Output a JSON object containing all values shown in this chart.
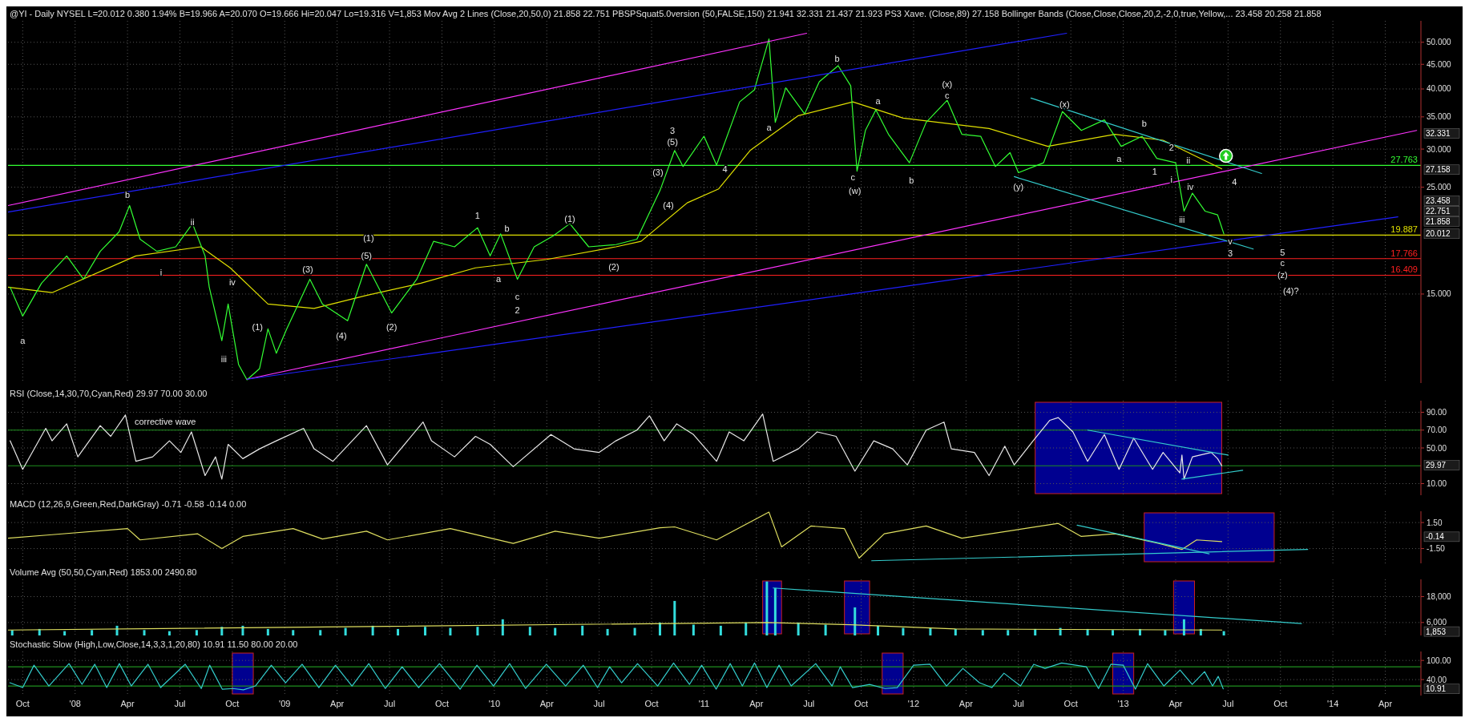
{
  "chart_data": [
    {
      "type": "line",
      "title": "@YI - Daily NYSEL L=20.012 0.380 1.94% B=19.966 A=20.070 O=19.666 Hi=20.047 Lo=19.316 V=1,853 Mov Avg 2 Lines (Close,20,50,0) 21.858 22.751 PBSPSquat5.0version (50,FALSE,150) 21.941 32.331 21.437 21.923 PS3 Xave. (Close,89) 27.158 Bollinger Bands (Close,Close,Close,20,2,-2,0,true,Yellow,... 23.458 20.258 21.858",
      "log": true,
      "grid": true,
      "tick_labels": "y",
      "xlim": [
        2007.68,
        2014.42
      ],
      "xticks": [
        2007.75,
        2008,
        2008.25,
        2008.5,
        2008.75,
        2009,
        2009.25,
        2009.5,
        2009.75,
        2010,
        2010.25,
        2010.5,
        2010.75,
        2011,
        2011.25,
        2011.5,
        2011.75,
        2012,
        2012.25,
        2012.5,
        2012.75,
        2013,
        2013.25,
        2013.5,
        2013.75,
        2014,
        2014.25
      ],
      "ylim": [
        9.8,
        55.4
      ],
      "yticks": [
        {
          "value": 15,
          "label": "15.000"
        },
        {
          "value": 25,
          "label": "25.000"
        },
        {
          "value": 30,
          "label": "30.000"
        },
        {
          "value": 35,
          "label": "35.000"
        },
        {
          "value": 40,
          "label": "40.000"
        },
        {
          "value": 45,
          "label": "45.000"
        },
        {
          "value": 50,
          "label": "50.000"
        }
      ],
      "series": [
        {
          "color": "#e0e000",
          "x": [
            2007.68,
            2007.89,
            2008.29,
            2008.6,
            2008.74,
            2008.92,
            2009.14,
            2009.39,
            2009.65,
            2009.91,
            2010.25,
            2010.58,
            2010.7,
            2010.92,
            2011.07,
            2011.22,
            2011.45,
            2011.71,
            2011.95,
            2012.36,
            2012.64,
            2012.96,
            2013.19,
            2013.47
          ],
          "values": [
            15.5,
            15.1,
            18.0,
            18.8,
            17.0,
            14.3,
            14.0,
            14.9,
            15.8,
            17.0,
            17.7,
            18.8,
            19.3,
            23.2,
            24.8,
            29.8,
            35.2,
            37.6,
            34.8,
            33.1,
            30.4,
            32.2,
            31.3,
            27.3
          ]
        },
        {
          "color": "#33ff33",
          "x": [
            2007.69,
            2007.75,
            2007.84,
            2007.96,
            2008.04,
            2008.12,
            2008.21,
            2008.26,
            2008.31,
            2008.39,
            2008.48,
            2008.56,
            2008.62,
            2008.64,
            2008.7,
            2008.73,
            2008.78,
            2008.82,
            2008.88,
            2008.92,
            2008.96,
            2009.01,
            2009.12,
            2009.18,
            2009.3,
            2009.39,
            2009.51,
            2009.63,
            2009.71,
            2009.81,
            2009.92,
            2009.98,
            2010.03,
            2010.11,
            2010.19,
            2010.28,
            2010.36,
            2010.45,
            2010.58,
            2010.68,
            2010.79,
            2010.86,
            2010.9,
            2011.0,
            2011.06,
            2011.17,
            2011.24,
            2011.31,
            2011.34,
            2011.39,
            2011.48,
            2011.55,
            2011.64,
            2011.7,
            2011.73,
            2011.77,
            2011.82,
            2011.88,
            2011.98,
            2012.06,
            2012.16,
            2012.23,
            2012.32,
            2012.39,
            2012.46,
            2012.5,
            2012.62,
            2012.71,
            2012.8,
            2012.91,
            2012.99,
            2013.09,
            2013.16,
            2013.25,
            2013.29,
            2013.33,
            2013.39,
            2013.45,
            2013.48
          ],
          "values": [
            15.5,
            13.5,
            15.8,
            18.0,
            16.1,
            18.4,
            20.2,
            22.9,
            19.5,
            18.4,
            18.8,
            21.0,
            18.0,
            15.5,
            12.0,
            14.3,
            10.7,
            9.95,
            10.5,
            12.7,
            11.3,
            12.7,
            16.1,
            14.3,
            13.2,
            17.3,
            13.7,
            16.1,
            19.3,
            18.8,
            20.6,
            18.0,
            20.0,
            16.1,
            18.8,
            19.8,
            21.0,
            18.8,
            19.0,
            19.5,
            24.6,
            29.8,
            27.6,
            31.9,
            27.8,
            37.6,
            39.8,
            50.8,
            34.1,
            40.2,
            35.5,
            41.4,
            44.7,
            40.6,
            27.0,
            32.8,
            36.2,
            32.2,
            28.1,
            34.1,
            37.9,
            32.2,
            31.9,
            27.6,
            29.5,
            26.8,
            28.1,
            35.9,
            32.8,
            34.5,
            30.4,
            31.9,
            28.7,
            28.1,
            22.3,
            24.3,
            22.3,
            21.9,
            20.0
          ]
        },
        {
          "color": "#ff33ff",
          "x": [
            2007.68,
            2011.49
          ],
          "values": [
            22.9,
            52.2
          ]
        },
        {
          "color": "#2020ff",
          "x": [
            2007.68,
            2012.73
          ],
          "values": [
            22.2,
            52.2
          ]
        },
        {
          "color": "#ff33ff",
          "x": [
            2008.82,
            2014.4
          ],
          "values": [
            9.98,
            32.8
          ]
        },
        {
          "color": "#2020ff",
          "x": [
            2008.82,
            2014.31
          ],
          "values": [
            9.98,
            21.7
          ]
        },
        {
          "color": "#33cccc",
          "x": [
            2012.56,
            2013.66
          ],
          "values": [
            38.3,
            26.7
          ]
        },
        {
          "color": "#33cccc",
          "x": [
            2012.48,
            2013.62
          ],
          "values": [
            26.3,
            18.6
          ]
        }
      ],
      "ref_lines": [
        {
          "axis": "y",
          "value": 27.763,
          "label": "27.763",
          "color": "#33ff33"
        },
        {
          "axis": "y",
          "value": 19.887,
          "label": "19.887",
          "color": "#e0e000"
        },
        {
          "axis": "y",
          "value": 17.766,
          "label": "17.766",
          "color": "#ff2020"
        },
        {
          "axis": "y",
          "value": 16.409,
          "label": "16.409",
          "color": "#ff2020"
        }
      ],
      "annotations": [
        "a",
        "b",
        "i",
        "ii",
        "iv",
        "iii",
        "(1)",
        "(3)",
        "(4)",
        "(5)",
        "(1)",
        "(2)",
        "1",
        "b",
        "a",
        "c",
        "2",
        "(1)",
        "(2)",
        "(3)",
        "(4)",
        "(5)",
        "3",
        "4",
        "a",
        "b",
        "c",
        "(w)",
        "a",
        "b",
        "c",
        "(x)",
        "(y)",
        "(x)",
        "a",
        "b",
        "1",
        "2",
        "i",
        "ii",
        "iv",
        "iii",
        "v",
        "3",
        "4",
        "5",
        "c",
        "(z)",
        "(4)?",
        "32.331",
        "27.158",
        "23.458",
        "22.751",
        "21.858",
        "20.012"
      ]
    },
    {
      "type": "line",
      "title": "RSI (Close,14,30,70,Cyan,Red) 29.97 70.00 30.00",
      "grid": true,
      "tick_labels": "y",
      "xlim": [
        2007.68,
        2014.42
      ],
      "xticks": [
        2007.75,
        2008,
        2008.25,
        2008.5,
        2008.75,
        2009,
        2009.25,
        2009.5,
        2009.75,
        2010,
        2010.25,
        2010.5,
        2010.75,
        2011,
        2011.25,
        2011.5,
        2011.75,
        2012,
        2012.25,
        2012.5,
        2012.75,
        2013,
        2013.25,
        2013.5,
        2013.75,
        2014,
        2014.25
      ],
      "ylim": [
        -3,
        103
      ],
      "yticks": [
        {
          "value": 10,
          "label": "10.00"
        },
        {
          "value": 50,
          "label": "50.00"
        },
        {
          "value": 70,
          "label": "70.00"
        },
        {
          "value": 90,
          "label": "90.00"
        }
      ],
      "bands": [
        {
          "axis": "x",
          "from": 2012.58,
          "to": 2013.47,
          "color": "#000090"
        }
      ],
      "ref_lines": [
        {
          "axis": "y",
          "value": 70,
          "color": "#1f8f1f"
        },
        {
          "axis": "y",
          "value": 30,
          "color": "#1f8f1f"
        }
      ],
      "series": [
        {
          "color": "#e8e8e8",
          "x": [
            2007.69,
            2007.75,
            2007.86,
            2007.89,
            2007.96,
            2008.013,
            2008.12,
            2008.17,
            2008.24,
            2008.29,
            2008.37,
            2008.45,
            2008.505,
            2008.555,
            2008.62,
            2008.67,
            2008.7,
            2008.73,
            2008.8,
            2008.88,
            2008.96,
            2009.09,
            2009.14,
            2009.23,
            2009.39,
            2009.49,
            2009.66,
            2009.7,
            2009.81,
            2009.91,
            2009.98,
            2010.09,
            2010.27,
            2010.38,
            2010.5,
            2010.58,
            2010.68,
            2010.74,
            2010.81,
            2010.87,
            2010.95,
            2011.06,
            2011.12,
            2011.19,
            2011.28,
            2011.33,
            2011.45,
            2011.54,
            2011.63,
            2011.72,
            2011.81,
            2011.9,
            2011.97,
            2012.06,
            2012.145,
            2012.18,
            2012.29,
            2012.36,
            2012.435,
            2012.48,
            2012.57,
            2012.65,
            2012.69,
            2012.76,
            2012.83,
            2012.91,
            2012.98,
            2013.05,
            2013.14,
            2013.19,
            2013.27,
            2013.28,
            2013.29,
            2013.33,
            2013.42,
            2013.45,
            2013.47
          ],
          "values": [
            58,
            26,
            72,
            58,
            77,
            40,
            75,
            63,
            87,
            35,
            40,
            58,
            45,
            68,
            19,
            40,
            15,
            54,
            38,
            49,
            58,
            72,
            49,
            35,
            75,
            31,
            79,
            58,
            40,
            63,
            54,
            29,
            65,
            49,
            45,
            58,
            70,
            86,
            58,
            77,
            65,
            35,
            68,
            58,
            88,
            35,
            49,
            68,
            63,
            24,
            58,
            49,
            31,
            70,
            79,
            49,
            45,
            19,
            52,
            31,
            58,
            81,
            84,
            68,
            35,
            65,
            26,
            61,
            26,
            45,
            22,
            42,
            15,
            40,
            45,
            38,
            30
          ]
        },
        {
          "color": "#33cccc",
          "x": [
            2012.83,
            2013.5
          ],
          "values": [
            70,
            42
          ]
        },
        {
          "color": "#33cccc",
          "x": [
            2013.28,
            2013.57
          ],
          "values": [
            15,
            25
          ]
        }
      ],
      "annotations": [
        "corrective wave",
        "29.97"
      ]
    },
    {
      "type": "line",
      "title": "MACD (12,26,9,Green,Red,DarkGray) -0.71 -0.58 -0.14 0.00",
      "grid": true,
      "tick_labels": "y",
      "xlim": [
        2007.68,
        2014.42
      ],
      "xticks": [
        2007.75,
        2008,
        2008.25,
        2008.5,
        2008.75,
        2009,
        2009.25,
        2009.5,
        2009.75,
        2010,
        2010.25,
        2010.5,
        2010.75,
        2011,
        2011.25,
        2011.5,
        2011.75,
        2012,
        2012.25,
        2012.5,
        2012.75,
        2013,
        2013.25,
        2013.5,
        2013.75,
        2014,
        2014.25
      ],
      "ylim": [
        -3.2,
        2.8
      ],
      "yticks": [
        {
          "value": 1.5,
          "label": "1.50"
        },
        {
          "value": -1.5,
          "label": "-1.50"
        }
      ],
      "bands": [
        {
          "axis": "x",
          "from": 2013.1,
          "to": 2013.72,
          "color": "#000090"
        }
      ],
      "series": [
        {
          "color": "#e0e060",
          "x": [
            2007.68,
            2007.89,
            2008.25,
            2008.31,
            2008.585,
            2008.7,
            2008.8,
            2009.04,
            2009.18,
            2009.39,
            2009.49,
            2009.79,
            2010.09,
            2010.29,
            2010.5,
            2010.79,
            2010.86,
            2011.06,
            2011.31,
            2011.37,
            2011.51,
            2011.67,
            2011.74,
            2011.86,
            2012.06,
            2012.23,
            2012.69,
            2012.8,
            2012.96,
            2013.17,
            2013.28,
            2013.35,
            2013.47
          ],
          "values": [
            -0.3,
            0.1,
            0.8,
            -0.5,
            0.2,
            -1.5,
            -0.1,
            0.8,
            -0.4,
            0.5,
            -0.5,
            0.8,
            -0.9,
            0.5,
            -0.3,
            0.9,
            1.0,
            -0.5,
            2.7,
            -1.3,
            1.1,
            0.8,
            -2.6,
            0.2,
            1.1,
            -0.3,
            1.4,
            -0.1,
            0.2,
            -0.9,
            -1.6,
            -0.5,
            -0.7
          ]
        },
        {
          "color": "#33cccc",
          "x": [
            2011.8,
            2013.88
          ],
          "values": [
            -2.9,
            -1.6
          ]
        },
        {
          "color": "#33cccc",
          "x": [
            2012.78,
            2013.41
          ],
          "values": [
            1.2,
            -2.1
          ]
        }
      ],
      "annotations": [
        "-0.14"
      ]
    },
    {
      "type": "bar",
      "title": "Volume Avg (50,50,Cyan,Red) 1853.00 2490.80",
      "grid": true,
      "tick_labels": "y",
      "xlim": [
        2007.68,
        2014.42
      ],
      "xticks": [
        2007.75,
        2008,
        2008.25,
        2008.5,
        2008.75,
        2009,
        2009.25,
        2009.5,
        2009.75,
        2010,
        2010.25,
        2010.5,
        2010.75,
        2011,
        2011.25,
        2011.5,
        2011.75,
        2012,
        2012.25,
        2012.5,
        2012.75,
        2013,
        2013.25,
        2013.5,
        2013.75,
        2014,
        2014.25
      ],
      "ylim": [
        0,
        26000
      ],
      "yticks": [
        {
          "value": 18000,
          "label": "18,000"
        },
        {
          "value": 6000,
          "label": "6,000"
        }
      ],
      "bands": [
        {
          "axis": "x",
          "from": 2011.28,
          "to": 2011.37,
          "color": "#000090"
        },
        {
          "axis": "x",
          "from": 2011.67,
          "to": 2011.79,
          "color": "#000090"
        },
        {
          "axis": "x",
          "from": 2013.24,
          "to": 2013.34,
          "color": "#000090"
        }
      ],
      "series": [
        {
          "color": "#33dddd",
          "x": [
            2007.7,
            2007.83,
            2007.95,
            2008.08,
            2008.2,
            2008.33,
            2008.45,
            2008.58,
            2008.7,
            2008.8,
            2008.92,
            2009.04,
            2009.17,
            2009.29,
            2009.42,
            2009.54,
            2009.67,
            2009.79,
            2009.92,
            2010.04,
            2010.17,
            2010.29,
            2010.42,
            2010.54,
            2010.67,
            2010.79,
            2010.86,
            2010.95,
            2011.08,
            2011.2,
            2011.3,
            2011.34,
            2011.45,
            2011.58,
            2011.72,
            2011.83,
            2011.95,
            2012.08,
            2012.2,
            2012.33,
            2012.45,
            2012.58,
            2012.7,
            2012.83,
            2012.95,
            2013.08,
            2013.2,
            2013.29,
            2013.37,
            2013.48
          ],
          "values": [
            2500,
            3000,
            2000,
            2500,
            4500,
            2500,
            2000,
            2500,
            4000,
            4500,
            3000,
            2500,
            2500,
            3500,
            4500,
            3000,
            4000,
            3500,
            4000,
            7500,
            4000,
            3500,
            4500,
            3000,
            3500,
            6000,
            16000,
            5000,
            4500,
            6000,
            25000,
            22000,
            6000,
            5000,
            13000,
            4500,
            3500,
            3500,
            3000,
            2500,
            2500,
            3000,
            3500,
            3000,
            2500,
            3000,
            2500,
            7500,
            3000,
            2000
          ]
        },
        {
          "type": "line",
          "color": "#e0e060",
          "x": [
            2007.68,
            2011.3,
            2011.7,
            2012.2,
            2013.47
          ],
          "values": [
            2500,
            6000,
            5000,
            3000,
            2500
          ]
        },
        {
          "type": "line",
          "color": "#33cccc",
          "x": [
            2011.33,
            2013.85
          ],
          "values": [
            22000,
            5500
          ]
        }
      ],
      "annotations": [
        "1,853"
      ]
    },
    {
      "type": "line",
      "title": "Stochastic Slow (High,Low,Close,14,3,3,1,20,80) 10.91 11.50 80.00 20.00",
      "grid": true,
      "xlim": [
        2007.68,
        2014.42
      ],
      "xticks": [
        {
          "value": 2007.75,
          "label": "Oct"
        },
        {
          "value": 2008,
          "label": "'08"
        },
        {
          "value": 2008.25,
          "label": "Apr"
        },
        {
          "value": 2008.5,
          "label": "Jul"
        },
        {
          "value": 2008.75,
          "label": "Oct"
        },
        {
          "value": 2009,
          "label": "'09"
        },
        {
          "value": 2009.25,
          "label": "Apr"
        },
        {
          "value": 2009.5,
          "label": "Jul"
        },
        {
          "value": 2009.75,
          "label": "Oct"
        },
        {
          "value": 2010,
          "label": "'10"
        },
        {
          "value": 2010.25,
          "label": "Apr"
        },
        {
          "value": 2010.5,
          "label": "Jul"
        },
        {
          "value": 2010.75,
          "label": "Oct"
        },
        {
          "value": 2011,
          "label": "'11"
        },
        {
          "value": 2011.25,
          "label": "Apr"
        },
        {
          "value": 2011.5,
          "label": "Jul"
        },
        {
          "value": 2011.75,
          "label": "Oct"
        },
        {
          "value": 2012,
          "label": "'12"
        },
        {
          "value": 2012.25,
          "label": "Apr"
        },
        {
          "value": 2012.5,
          "label": "Jul"
        },
        {
          "value": 2012.75,
          "label": "Oct"
        },
        {
          "value": 2013,
          "label": "'13"
        },
        {
          "value": 2013.25,
          "label": "Apr"
        },
        {
          "value": 2013.5,
          "label": "Jul"
        },
        {
          "value": 2013.75,
          "label": "Oct"
        },
        {
          "value": 2014,
          "label": "'14"
        },
        {
          "value": 2014.25,
          "label": "Apr"
        }
      ],
      "ylim": [
        -10,
        128
      ],
      "yticks": [
        {
          "value": 100,
          "label": "100.00"
        },
        {
          "value": 40,
          "label": "40.00"
        }
      ],
      "bands": [
        {
          "axis": "x",
          "from": 2008.75,
          "to": 2008.85,
          "color": "#000090"
        },
        {
          "axis": "x",
          "from": 2011.85,
          "to": 2011.95,
          "color": "#000090"
        },
        {
          "axis": "x",
          "from": 2012.95,
          "to": 2013.05,
          "color": "#000090"
        }
      ],
      "ref_lines": [
        {
          "axis": "y",
          "value": 80,
          "color": "#1f8f1f"
        },
        {
          "axis": "y",
          "value": 20,
          "color": "#1f8f1f"
        }
      ],
      "series": [
        {
          "color": "#33cccc",
          "x": [
            2007.689,
            2007.75,
            2007.804,
            2007.875,
            2007.971,
            2008.033,
            2008.094,
            2008.151,
            2008.211,
            2008.268,
            2008.348,
            2008.408,
            2008.525,
            2008.602,
            2008.642,
            2008.702,
            2008.753,
            2008.803,
            2008.86,
            2008.936,
            2009.004,
            2009.083,
            2009.163,
            2009.242,
            2009.321,
            2009.401,
            2009.48,
            2009.56,
            2009.639,
            2009.738,
            2009.837,
            2009.917,
            2009.996,
            2010.073,
            2010.149,
            2010.248,
            2010.34,
            2010.424,
            2010.492,
            2010.55,
            2010.607,
            2010.683,
            2010.779,
            2010.855,
            2010.931,
            2010.989,
            2011.058,
            2011.125,
            2011.183,
            2011.241,
            2011.3,
            2011.358,
            2011.416,
            2011.533,
            2011.611,
            2011.65,
            2011.708,
            2011.79,
            2011.864,
            2011.922,
            2012.0,
            2012.078,
            2012.157,
            2012.235,
            2012.314,
            2012.373,
            2012.431,
            2012.51,
            2012.573,
            2012.627,
            2012.706,
            2012.824,
            2012.882,
            2012.941,
            2013.0,
            2013.058,
            2013.116,
            2013.194,
            2013.271,
            2013.329,
            2013.388,
            2013.426,
            2013.453,
            2013.477
          ],
          "values": [
            30,
            15,
            85,
            20,
            90,
            25,
            88,
            15,
            90,
            20,
            88,
            15,
            88,
            12,
            85,
            10,
            12,
            8,
            20,
            85,
            30,
            88,
            15,
            85,
            20,
            90,
            12,
            80,
            15,
            90,
            10,
            85,
            20,
            90,
            12,
            88,
            20,
            85,
            15,
            80,
            30,
            90,
            20,
            92,
            25,
            85,
            10,
            90,
            20,
            92,
            15,
            85,
            20,
            90,
            20,
            80,
            15,
            25,
            12,
            15,
            85,
            88,
            20,
            75,
            30,
            15,
            60,
            20,
            88,
            75,
            92,
            80,
            12,
            88,
            85,
            10,
            90,
            20,
            70,
            25,
            65,
            20,
            50,
            11
          ]
        }
      ],
      "annotations": [
        "10.91"
      ]
    }
  ]
}
